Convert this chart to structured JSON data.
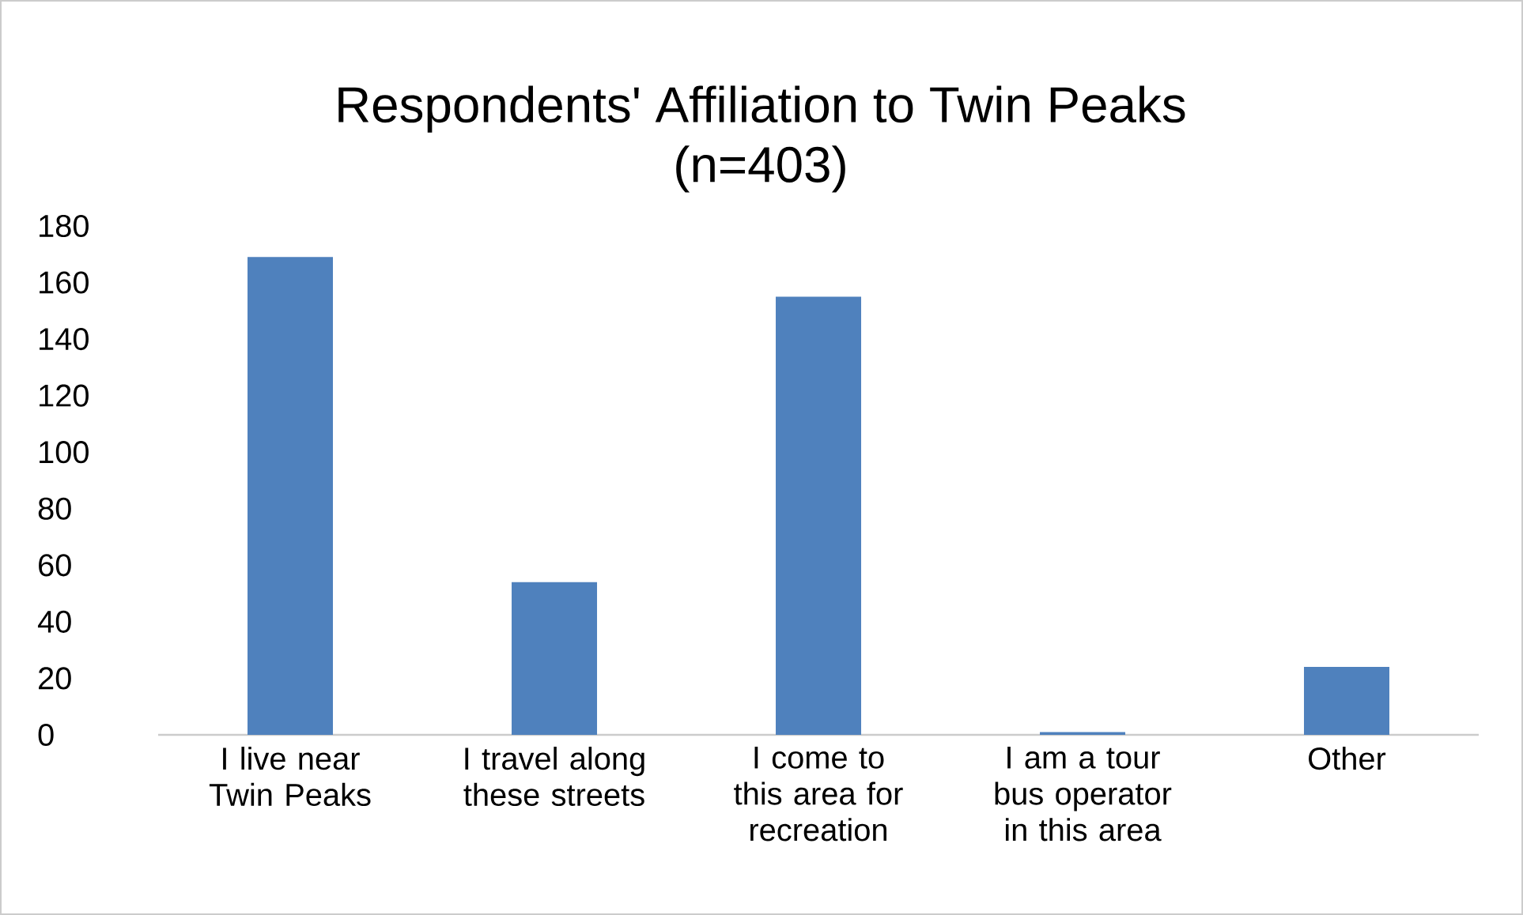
{
  "chart_data": {
    "type": "bar",
    "title": "Respondents' Affiliation to Twin Peaks",
    "subtitle": "(n=403)",
    "categories": [
      "I live near Twin Peaks",
      "I travel along these streets",
      "I come to this area for recreation",
      "I am a tour bus operator in this area",
      "Other"
    ],
    "values": [
      169,
      54,
      155,
      1,
      24
    ],
    "color": "#4f81bd",
    "ylim": [
      0,
      180
    ],
    "yticks": [
      0,
      20,
      40,
      60,
      80,
      100,
      120,
      140,
      160,
      180
    ]
  }
}
